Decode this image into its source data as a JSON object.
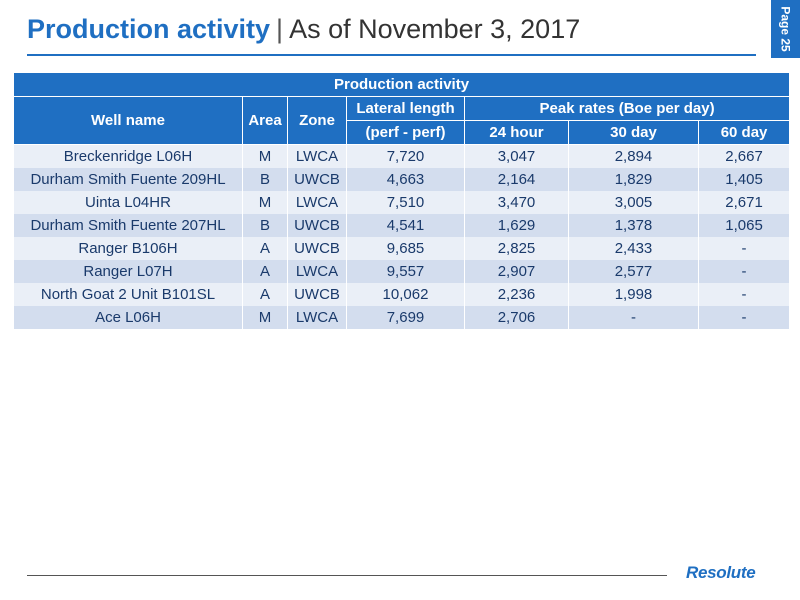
{
  "header": {
    "title_bold": "Production activity",
    "separator": "|",
    "title_rest": "As of November 3, 2017",
    "page_label": "Page 25"
  },
  "table": {
    "caption": "Production activity",
    "columns": {
      "well_name": "Well name",
      "area": "Area",
      "zone": "Zone",
      "lateral_line1": "Lateral length",
      "lateral_line2": "(perf - perf)",
      "peak_group": "Peak rates (Boe per day)",
      "h24": "24 hour",
      "d30": "30 day",
      "d60": "60 day"
    },
    "rows": [
      {
        "well": "Breckenridge L06H",
        "area": "M",
        "zone": "LWCA",
        "lateral": "7,720",
        "h24": "3,047",
        "d30": "2,894",
        "d60": "2,667"
      },
      {
        "well": "Durham Smith Fuente 209HL",
        "area": "B",
        "zone": "UWCB",
        "lateral": "4,663",
        "h24": "2,164",
        "d30": "1,829",
        "d60": "1,405"
      },
      {
        "well": "Uinta L04HR",
        "area": "M",
        "zone": "LWCA",
        "lateral": "7,510",
        "h24": "3,470",
        "d30": "3,005",
        "d60": "2,671"
      },
      {
        "well": "Durham Smith Fuente 207HL",
        "area": "B",
        "zone": "UWCB",
        "lateral": "4,541",
        "h24": "1,629",
        "d30": "1,378",
        "d60": "1,065"
      },
      {
        "well": "Ranger B106H",
        "area": "A",
        "zone": "UWCB",
        "lateral": "9,685",
        "h24": "2,825",
        "d30": "2,433",
        "d60": "-"
      },
      {
        "well": "Ranger L07H",
        "area": "A",
        "zone": "LWCA",
        "lateral": "9,557",
        "h24": "2,907",
        "d30": "2,577",
        "d60": "-"
      },
      {
        "well": "North Goat 2 Unit B101SL",
        "area": "A",
        "zone": "UWCB",
        "lateral": "10,062",
        "h24": "2,236",
        "d30": "1,998",
        "d60": "-"
      },
      {
        "well": "Ace L06H",
        "area": "M",
        "zone": "LWCA",
        "lateral": "7,699",
        "h24": "2,706",
        "d30": "-",
        "d60": "-"
      }
    ]
  },
  "footer": {
    "logo_text": "Resolute"
  },
  "colors": {
    "brand_blue": "#1f6fc2",
    "row_light": "#eaeff7",
    "row_dark": "#d3ddee"
  }
}
